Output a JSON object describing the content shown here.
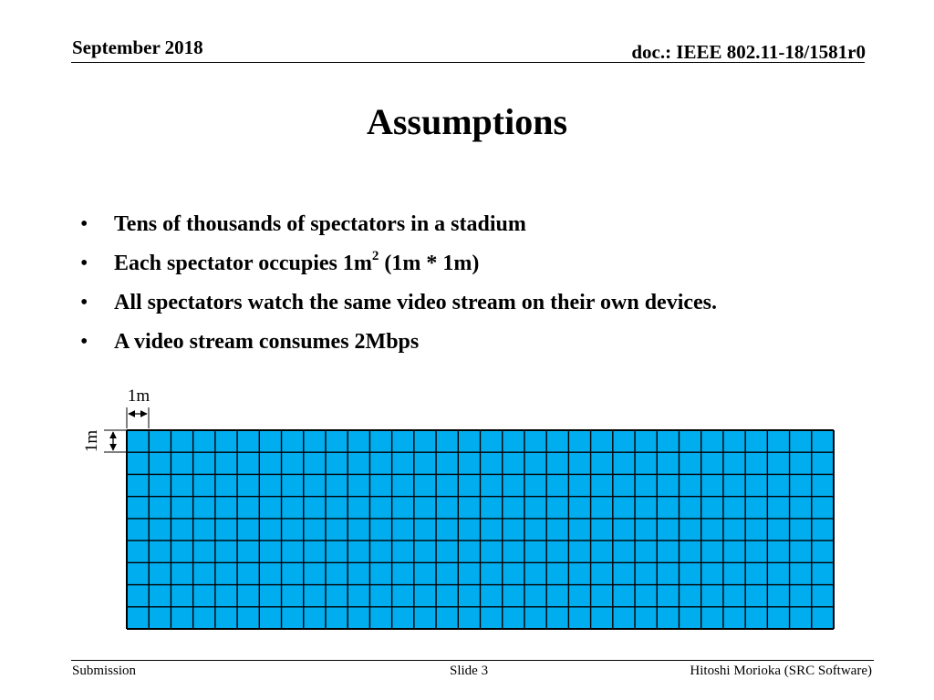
{
  "header": {
    "date": "September 2018",
    "doc_id": "doc.: IEEE 802.11-18/1581r0"
  },
  "title": "Assumptions",
  "bullets": [
    {
      "text": "Tens of thousands of spectators in a stadium"
    },
    {
      "text_before": "Each spectator occupies 1m",
      "superscript": "2",
      "text_after": " (1m * 1m)"
    },
    {
      "text": "All spectators watch the same video stream on their own devices."
    },
    {
      "text": "A video stream consumes 2Mbps"
    }
  ],
  "bullet_glyph": "•",
  "diagram": {
    "columns": 32,
    "rows": 9,
    "cell_fill": "#00aeef",
    "grid_line": "#000000",
    "width_label": "1m",
    "height_label": "1m"
  },
  "footer": {
    "left": "Submission",
    "center": "Slide 3",
    "right": "Hitoshi Morioka (SRC Software)"
  }
}
